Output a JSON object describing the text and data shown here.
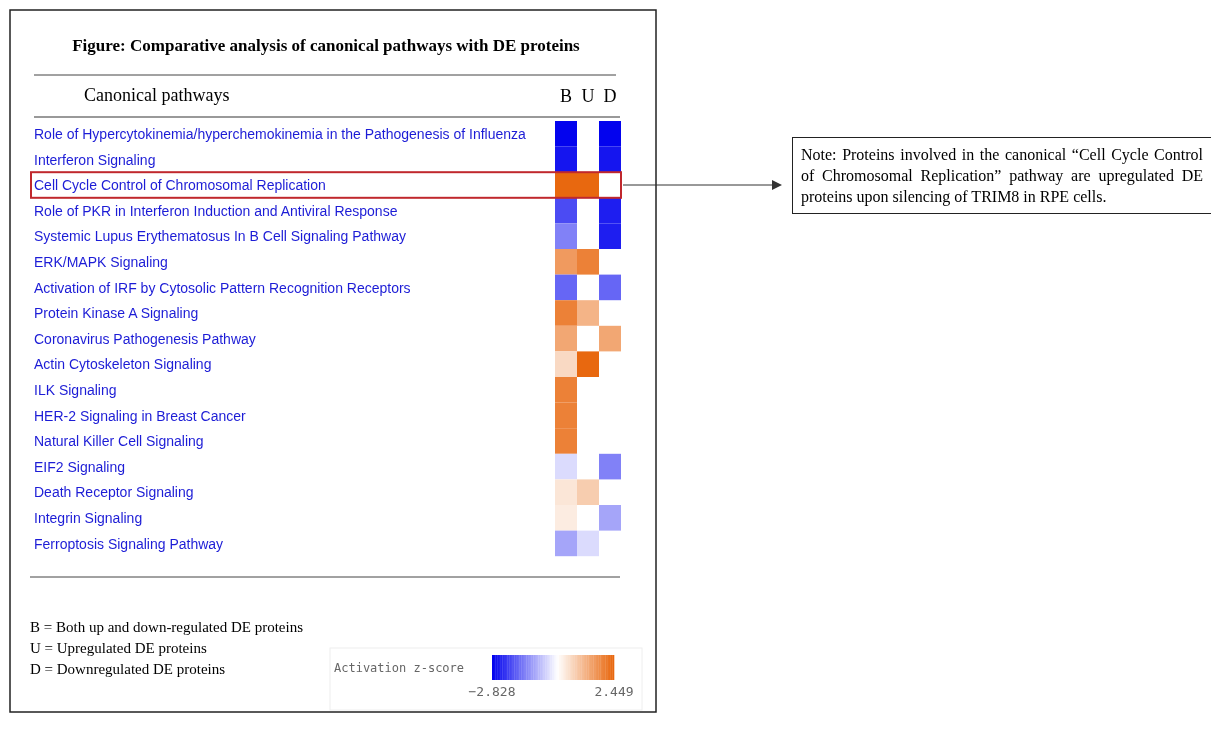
{
  "chart_data": {
    "type": "heatmap",
    "title": "Figure: Comparative analysis of canonical pathways with DE proteins",
    "ylabel": "Canonical pathways",
    "categories": [
      "B",
      "U",
      "D"
    ],
    "y_categories": [
      "Role of Hypercytokinemia/hyperchemokinemia in the Pathogenesis of Influenza",
      "Interferon Signaling",
      "Cell Cycle Control of Chromosomal Replication",
      "Role of PKR in Interferon Induction and Antiviral Response",
      "Systemic Lupus Erythematosus In B Cell Signaling Pathway",
      "ERK/MAPK Signaling",
      "Activation of IRF by Cytosolic Pattern Recognition Receptors",
      "Protein Kinase A Signaling",
      "Coronavirus Pathogenesis Pathway",
      "Actin Cytoskeleton Signaling",
      "ILK Signaling",
      "HER-2 Signaling in Breast Cancer",
      "Natural Killer Cell Signaling",
      "EIF2 Signaling",
      "Death Receptor Signaling",
      "Integrin Signaling",
      "Ferroptosis Signaling Pathway"
    ],
    "cells": [
      [
        -2.8,
        null,
        -2.8
      ],
      [
        -2.6,
        null,
        -2.6
      ],
      [
        2.4,
        2.4,
        null
      ],
      [
        -2.0,
        null,
        -2.5
      ],
      [
        -1.4,
        null,
        -2.5
      ],
      [
        1.6,
        2.0,
        null
      ],
      [
        -1.7,
        null,
        -1.7
      ],
      [
        2.0,
        1.2,
        null
      ],
      [
        1.4,
        null,
        1.4
      ],
      [
        0.6,
        2.4,
        null
      ],
      [
        2.0,
        null,
        null
      ],
      [
        2.0,
        null,
        null
      ],
      [
        2.0,
        null,
        null
      ],
      [
        -0.4,
        null,
        -1.4
      ],
      [
        0.4,
        0.8,
        null
      ],
      [
        0.3,
        null,
        -1.0
      ],
      [
        -1.0,
        -0.4,
        null
      ]
    ],
    "clabel": "Activation z-score",
    "clim": [
      -2.828,
      2.449
    ],
    "cticks": [
      -2.828,
      2.449
    ],
    "annotations": [
      "B = Both up and down-regulated DE proteins",
      "U = Upregulated DE proteins",
      "D = Downregulated DE proteins",
      "Note: Proteins involved in the canonical “Cell Cycle Control of Chromosomal Replication” pathway are upregulated DE proteins upon silencing of TRIM8 in RPE cells."
    ]
  }
}
